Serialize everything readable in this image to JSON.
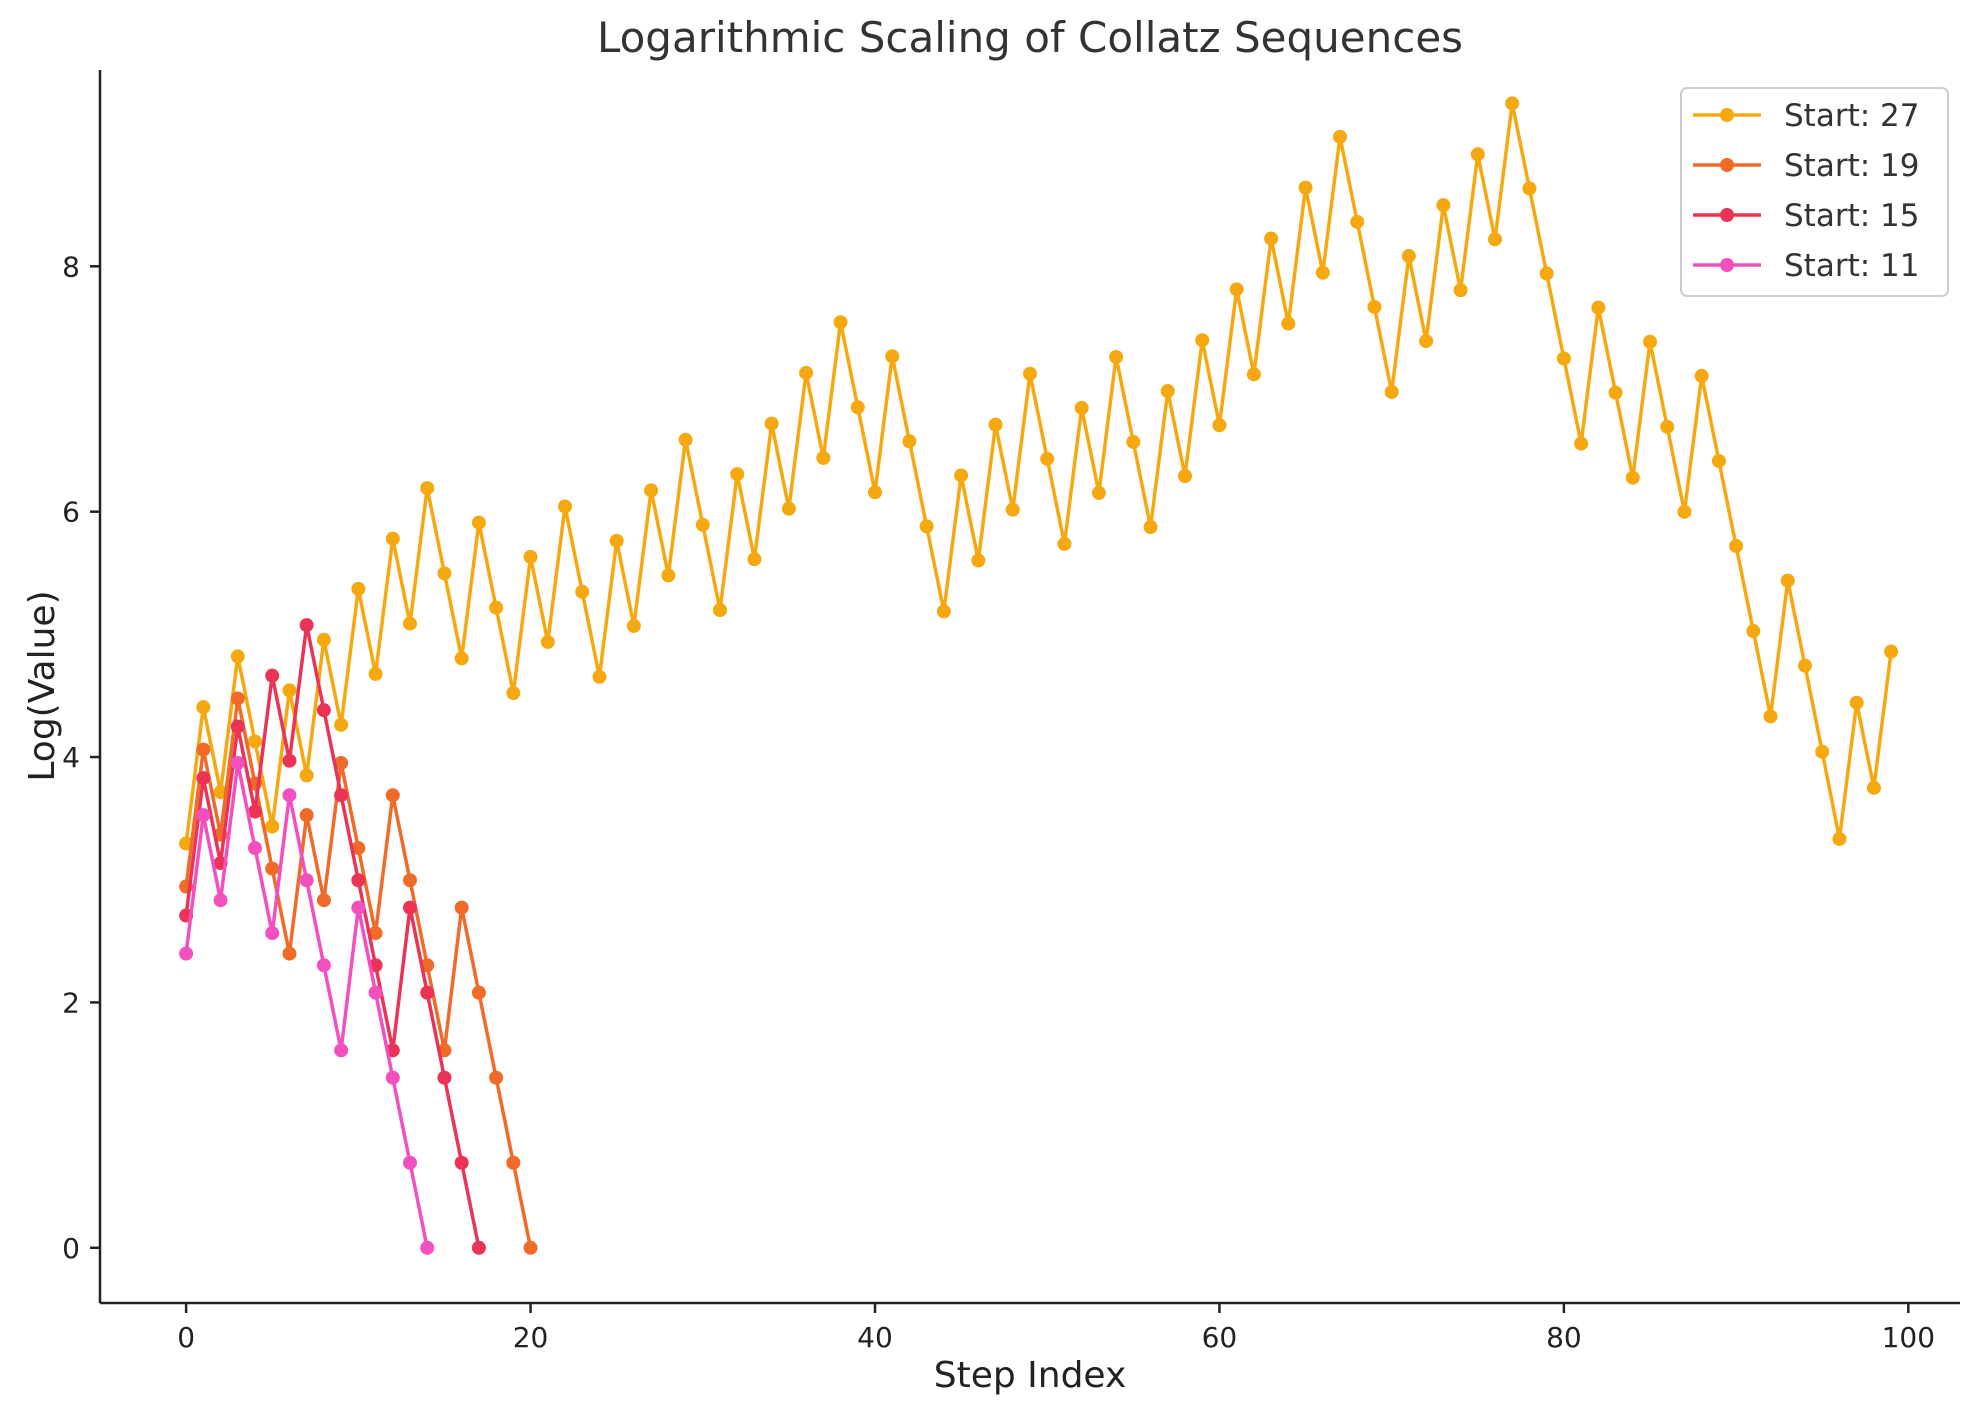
{
  "chart_data": {
    "type": "line",
    "title": "Logarithmic Scaling of Collatz Sequences",
    "xlabel": "Step Index",
    "ylabel": "Log(Value)",
    "xlim": [
      -5,
      103
    ],
    "ylim": [
      -0.45,
      9.6
    ],
    "xticks": [
      0,
      20,
      40,
      60,
      80,
      100
    ],
    "yticks": [
      0,
      2,
      4,
      6,
      8
    ],
    "grid": false,
    "legend_position": "top-right",
    "series": [
      {
        "name": "Start: 27",
        "color": "#f5a80f",
        "values": [
          3.2958,
          4.4067,
          3.7136,
          4.8203,
          4.1271,
          3.434,
          4.5433,
          3.8501,
          4.9558,
          4.2627,
          5.3706,
          4.6774,
          5.7807,
          5.0876,
          6.1924,
          5.4972,
          4.804,
          5.9108,
          5.2176,
          4.5218,
          5.6312,
          4.9381,
          6.0426,
          5.3471,
          4.654,
          5.7621,
          5.0689,
          6.1738,
          5.4806,
          6.5862,
          5.8931,
          5.1985,
          6.3063,
          5.6131,
          6.7178,
          6.0246,
          7.1309,
          6.4378,
          7.5443,
          6.8512,
          6.1581,
          7.2667,
          6.5736,
          5.8805,
          5.1874,
          6.2953,
          5.6021,
          6.7093,
          6.0162,
          7.1237,
          6.4305,
          5.7374,
          6.8459,
          6.1527,
          7.2612,
          6.568,
          5.8749,
          6.9834,
          6.2903,
          7.3976,
          6.7045,
          7.8123,
          7.1192,
          8.2266,
          7.5335,
          8.6412,
          7.948,
          9.0554,
          8.3622,
          7.669,
          6.9759,
          8.0837,
          7.3906,
          8.4985,
          7.8053,
          8.9128,
          8.2197,
          9.3276,
          8.6344,
          7.9413,
          7.2481,
          6.555,
          7.6631,
          6.97,
          6.2768,
          7.3847,
          6.6916,
          5.9985,
          7.1066,
          6.4135,
          5.7203,
          5.0271,
          4.3307,
          5.4381,
          4.7449,
          4.0431,
          3.3322,
          4.4427,
          3.7495,
          4.8598
        ]
      },
      {
        "name": "Start: 19",
        "color": "#f06a28",
        "values": [
          2.9444,
          4.0604,
          3.3673,
          4.4773,
          3.7842,
          3.091,
          2.3979,
          3.5264,
          2.8332,
          3.9512,
          3.2581,
          2.5649,
          3.6889,
          2.9957,
          2.3026,
          1.6094,
          2.7726,
          2.0794,
          1.3863,
          0.6931,
          0.0
        ]
      },
      {
        "name": "Start: 15",
        "color": "#eb3355",
        "values": [
          2.7081,
          3.8286,
          3.1355,
          4.2485,
          3.5553,
          4.6634,
          3.9703,
          5.0752,
          4.382,
          3.6889,
          2.9957,
          2.3026,
          1.6094,
          2.7726,
          2.0794,
          1.3863,
          0.6931,
          0.0
        ]
      },
      {
        "name": "Start: 11",
        "color": "#f250be",
        "values": [
          2.3979,
          3.5264,
          2.8332,
          3.9512,
          3.2581,
          2.5649,
          3.6889,
          2.9957,
          2.3026,
          1.6094,
          2.7726,
          2.0794,
          1.3863,
          0.6931,
          0.0
        ]
      }
    ]
  }
}
